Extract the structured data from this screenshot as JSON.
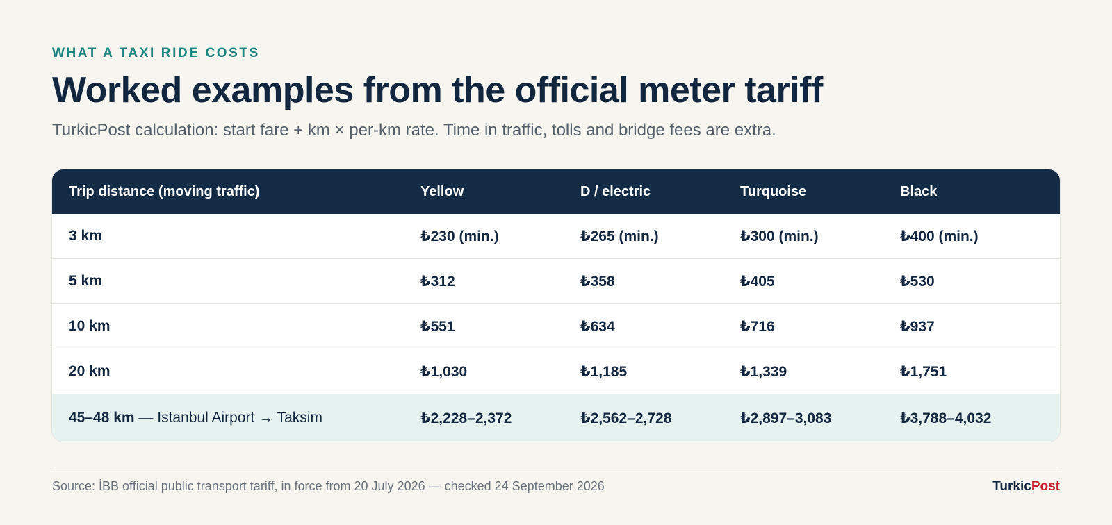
{
  "header": {
    "kicker": "WHAT A TAXI RIDE COSTS",
    "title": "Worked examples from the official meter tariff",
    "subtitle": "TurkicPost calculation: start fare + km × per-km rate. Time in traffic, tolls and bridge fees are extra."
  },
  "table": {
    "columns": [
      "Trip distance (moving traffic)",
      "Yellow",
      "D / electric",
      "Turquoise",
      "Black"
    ],
    "rows": [
      {
        "distance": "3 km",
        "extra": "",
        "yellow": "₺230 (min.)",
        "d_electric": "₺265 (min.)",
        "turquoise": "₺300 (min.)",
        "black": "₺400 (min.)"
      },
      {
        "distance": "5 km",
        "extra": "",
        "yellow": "₺312",
        "d_electric": "₺358",
        "turquoise": "₺405",
        "black": "₺530"
      },
      {
        "distance": "10 km",
        "extra": "",
        "yellow": "₺551",
        "d_electric": "₺634",
        "turquoise": "₺716",
        "black": "₺937"
      },
      {
        "distance": "20 km",
        "extra": "",
        "yellow": "₺1,030",
        "d_electric": "₺1,185",
        "turquoise": "₺1,339",
        "black": "₺1,751"
      },
      {
        "distance": "45–48 km",
        "extra": " — Istanbul Airport → Taksim",
        "yellow": "₺2,228–2,372",
        "d_electric": "₺2,562–2,728",
        "turquoise": "₺2,897–3,083",
        "black": "₺3,788–4,032"
      }
    ],
    "highlight_color": "#e6f2f0",
    "header_color": "#132b45"
  },
  "footer": {
    "source": "Source: İBB official public transport tariff, in force from 20 July 2026 — checked 24 September 2026",
    "brand_part1": "Turkic",
    "brand_part2": "Post",
    "brand_color": "#c8202e"
  }
}
